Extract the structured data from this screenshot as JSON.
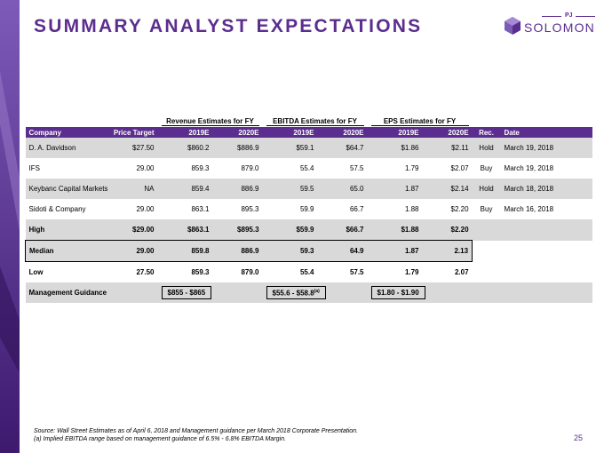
{
  "title": "SUMMARY ANALYST EXPECTATIONS",
  "logo": {
    "top": "PJ",
    "name": "SOLOMON"
  },
  "colors": {
    "accent": "#5b2d8e",
    "row_shade": "#d9d9d9"
  },
  "table": {
    "groups": [
      "Revenue Estimates for FY",
      "EBITDA Estimates for FY",
      "EPS Estimates for FY"
    ],
    "headers": [
      "Company",
      "Price Target",
      "2019E",
      "2020E",
      "2019E",
      "2020E",
      "2019E",
      "2020E",
      "Rec.",
      "Date"
    ],
    "rows": [
      [
        "D. A. Davidson",
        "$27.50",
        "$860.2",
        "$886.9",
        "$59.1",
        "$64.7",
        "$1.86",
        "$2.11",
        "Hold",
        "March 19, 2018"
      ],
      [
        "IFS",
        "29.00",
        "859.3",
        "879.0",
        "55.4",
        "57.5",
        "1.79",
        "$2.07",
        "Buy",
        "March 19, 2018"
      ],
      [
        "Keybanc Capital Markets",
        "NA",
        "859.4",
        "886.9",
        "59.5",
        "65.0",
        "1.87",
        "$2.14",
        "Hold",
        "March 18, 2018"
      ],
      [
        "Sidoti & Company",
        "29.00",
        "863.1",
        "895.3",
        "59.9",
        "66.7",
        "1.88",
        "$2.20",
        "Buy",
        "March 16, 2018"
      ]
    ],
    "high": [
      "High",
      "$29.00",
      "$863.1",
      "$895.3",
      "$59.9",
      "$66.7",
      "$1.88",
      "$2.20"
    ],
    "median": [
      "Median",
      "29.00",
      "859.8",
      "886.9",
      "59.3",
      "64.9",
      "1.87",
      "2.13"
    ],
    "low": [
      "Low",
      "27.50",
      "859.3",
      "879.0",
      "55.4",
      "57.5",
      "1.79",
      "2.07"
    ],
    "guidance": {
      "label": "Management Guidance",
      "revenue": "$855 - $865",
      "ebitda": "$55.6 - $58.8",
      "ebitda_note": "(a)",
      "eps": "$1.80 - $1.90"
    }
  },
  "footnotes": {
    "source": "Source: Wall Street Estimates as of April 6, 2018 and Management guidance per March 2018 Corporate Presentation.",
    "note_a": "(a) Implied EBITDA range based on management guidance of 6.5% - 6.8% EBITDA Margin."
  },
  "page_number": "25"
}
